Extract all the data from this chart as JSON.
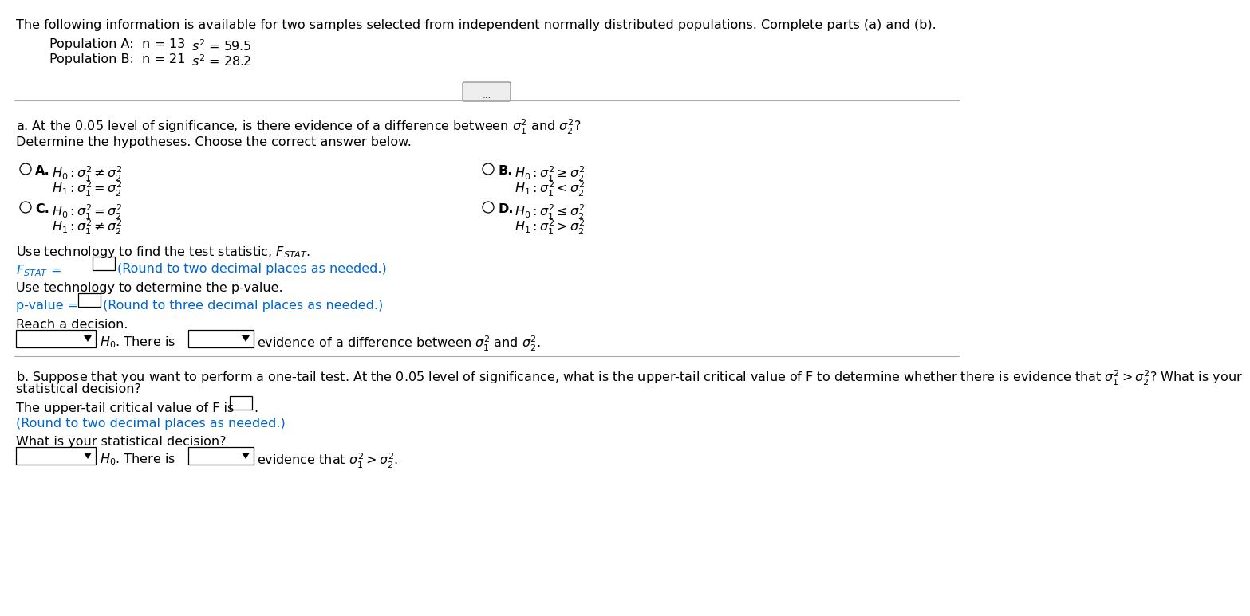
{
  "bg_color": "#ffffff",
  "text_color": "#000000",
  "hint_color": "#0066cc",
  "separator_color": "#aaaaaa",
  "title_line": "The following information is available for two samples selected from independent normally distributed populations. Complete parts (a) and (b).",
  "pop_a_n": "n = 13",
  "pop_a_s2": "$s^2$ = 59.5",
  "pop_b_n": "n = 21",
  "pop_b_s2": "$s^2$ = 28.2",
  "part_a_q": "a. At the 0.05 level of significance, is there evidence of a difference between $\\sigma_1^2$ and $\\sigma_2^2$?",
  "determine_hyp": "Determine the hypotheses. Choose the correct answer below.",
  "opt_A_H0": "$H_0: \\sigma_1^2 \\neq \\sigma_2^2$",
  "opt_A_H1": "$H_1: \\sigma_1^2 = \\sigma_2^2$",
  "opt_B_H0": "$H_0: \\sigma_1^2 \\geq \\sigma_2^2$",
  "opt_B_H1": "$H_1: \\sigma_1^2 < \\sigma_2^2$",
  "opt_C_H0": "$H_0: \\sigma_1^2 = \\sigma_2^2$",
  "opt_C_H1": "$H_1: \\sigma_1^2 \\neq \\sigma_2^2$",
  "opt_D_H0": "$H_0: \\sigma_1^2 \\leq \\sigma_2^2$",
  "opt_D_H1": "$H_1: \\sigma_1^2 > \\sigma_2^2$",
  "fstat_label": "Use technology to find the test statistic, $F_{STAT}$.",
  "fstat_line_label": "$F_{STAT}$ =",
  "fstat_hint": "(Round to two decimal places as needed.)",
  "pvalue_label": "Use technology to determine the p-value.",
  "pvalue_hint": "(Round to three decimal places as needed.)",
  "decision_label": "Reach a decision.",
  "decision_mid": "$H_0$. There is",
  "decision_end": "evidence of a difference between $\\sigma_1^2$ and $\\sigma_2^2$.",
  "part_b_q1": "b. Suppose that you want to perform a one-tail test. At the 0.05 level of significance, what is the upper-tail critical value of F to determine whether there is evidence that $\\sigma_1^2 > \\sigma_2^2$? What is your",
  "part_b_q2": "statistical decision?",
  "upper_tail_label": "The upper-tail critical value of F is",
  "upper_tail_hint": "(Round to two decimal places as needed.)",
  "what_decision": "What is your statistical decision?",
  "decision2_mid": "$H_0$. There is",
  "decision2_end": "evidence that $\\sigma_1^2 > \\sigma_2^2$."
}
